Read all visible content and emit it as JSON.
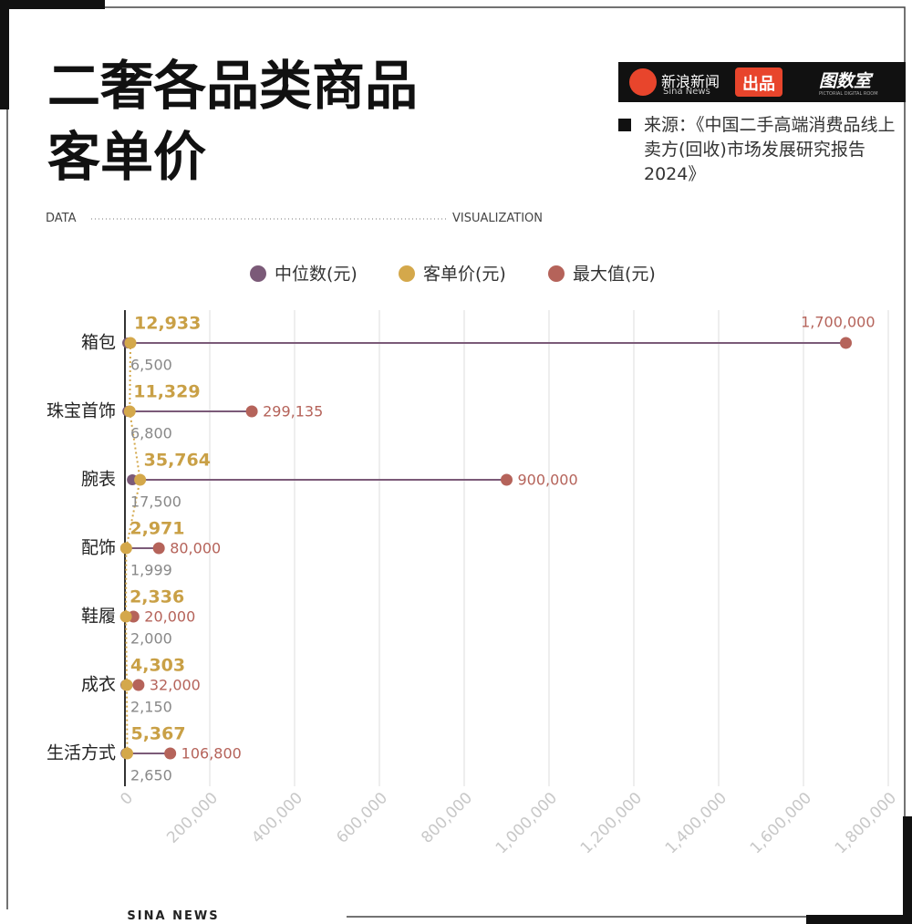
{
  "header": {
    "title": "二奢各品类商品客单价",
    "brand": "新浪新闻",
    "brand_en": "Sina News",
    "badge": "出品",
    "studio": "图数室",
    "studio_en": "PICTORIAL DIGITAL ROOM",
    "source": "来源：《中国二手高端消费品线上卖方(回收)市场发展研究报告2024》",
    "data_word": "DATA",
    "vis_word": "VISUALIZATION"
  },
  "footer": {
    "text": "SINA NEWS"
  },
  "chart_data": {
    "type": "dumbbell",
    "categories": [
      "箱包",
      "珠宝首饰",
      "腕表",
      "配饰",
      "鞋履",
      "成衣",
      "生活方式"
    ],
    "series": [
      {
        "name": "中位数(元)",
        "color": "#7b5a78",
        "values": [
          6500,
          6800,
          17500,
          1999,
          2000,
          2150,
          2650
        ],
        "value_labels": [
          "6,500",
          "6,800",
          "17,500",
          "1,999",
          "2,000",
          "2,150",
          "2,650"
        ]
      },
      {
        "name": "客单价(元)",
        "color": "#d4a84b",
        "values": [
          12933,
          11329,
          35764,
          2971,
          2336,
          4303,
          5367
        ],
        "value_labels": [
          "12,933",
          "11,329",
          "35,764",
          "2,971",
          "2,336",
          "4,303",
          "5,367"
        ]
      },
      {
        "name": "最大值(元)",
        "color": "#b5635a",
        "values": [
          1700000,
          299135,
          900000,
          80000,
          20000,
          32000,
          106800
        ],
        "value_labels": [
          "1,700,000",
          "299,135",
          "900,000",
          "80,000",
          "20,000",
          "32,000",
          "106,800"
        ]
      }
    ],
    "xlim": [
      0,
      1800000
    ],
    "xticks": [
      0,
      {
        "value": 200000,
        "label": "200,000"
      },
      {
        "value": 400000,
        "label": "400,000"
      },
      {
        "value": 600000,
        "label": "600,000"
      },
      {
        "value": 800000,
        "label": "800,000"
      },
      {
        "value": 1000000,
        "label": "1,000,000"
      },
      {
        "value": 1200000,
        "label": "1,200,000"
      },
      {
        "value": 1400000,
        "label": "1,400,000"
      },
      {
        "value": 1600000,
        "label": "1,600,000"
      },
      {
        "value": 1800000,
        "label": "1,800,000"
      }
    ],
    "grid": true,
    "legend": "top"
  }
}
